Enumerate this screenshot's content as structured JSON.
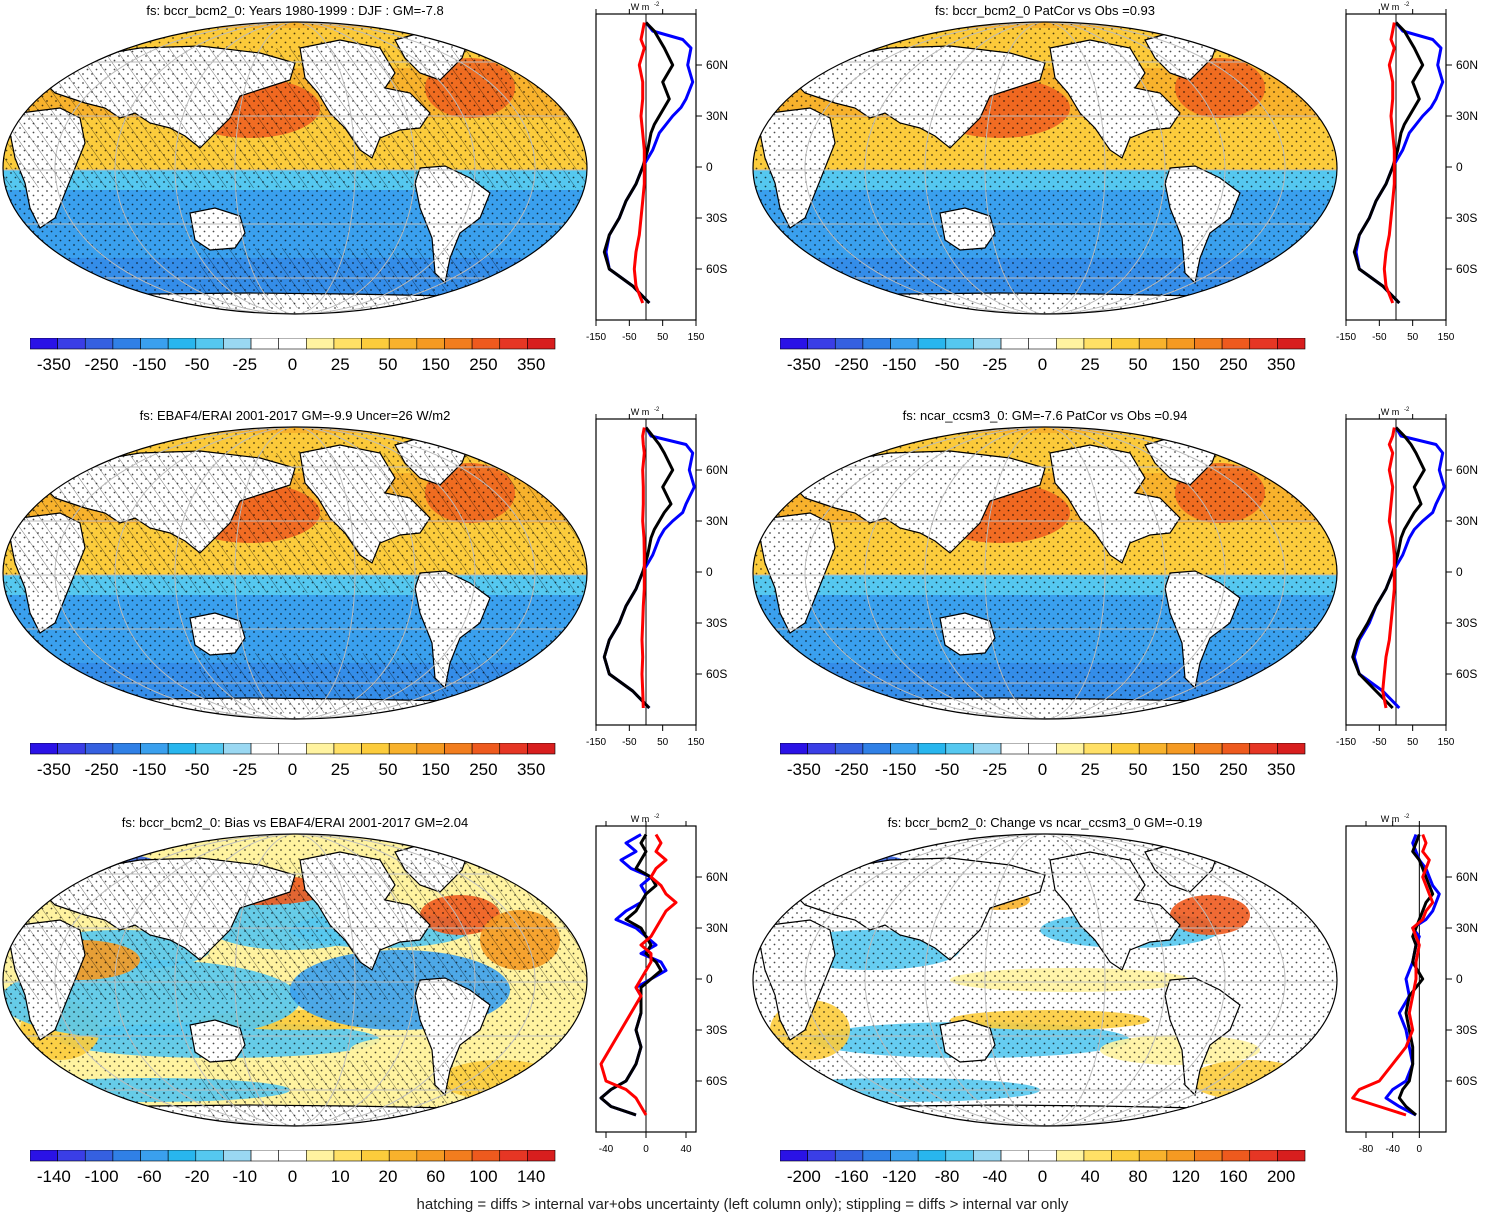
{
  "footer": "hatching = diffs > internal var+obs uncertainty (left column only); stippling = diffs > internal var only",
  "colorscales": {
    "abs": [
      "#2a12e6",
      "#3a3ee6",
      "#3560e0",
      "#3080e6",
      "#3aa0ee",
      "#28b6ee",
      "#55c8f0",
      "#9ad8f2",
      "#ffffff",
      "#ffffff",
      "#fff3a0",
      "#ffe066",
      "#fccc3c",
      "#f8b22c",
      "#f59a22",
      "#f27d1e",
      "#ee5a1e",
      "#e63624",
      "#d81e1e"
    ],
    "diff": [
      "#2a12e6",
      "#3a3ee6",
      "#3560e0",
      "#3080e6",
      "#3aa0ee",
      "#28b6ee",
      "#55c8f0",
      "#9ad8f2",
      "#ffffff",
      "#ffffff",
      "#fff3a0",
      "#ffe066",
      "#fccc3c",
      "#f8b22c",
      "#f59a22",
      "#f27d1e",
      "#ee5a1e",
      "#e63624",
      "#d81e1e"
    ]
  },
  "lat_labels": [
    "60N",
    "30N",
    "0",
    "30S",
    "60S"
  ],
  "profile_unit": "W m",
  "profile_unit_sup": "-2",
  "panels": [
    {
      "id": "p1",
      "title": "fs: bccr_bcm2_0: Years 1980-1999 : DJF : GM=-7.8",
      "cbar_ticks": [
        "-350",
        "-250",
        "-150",
        "-50",
        "-25",
        "0",
        "25",
        "50",
        "150",
        "250",
        "350"
      ],
      "scale": "abs",
      "hatch": true,
      "profile_ticks": [
        "-150",
        "-50",
        "50",
        "150"
      ],
      "profile_range": [
        -150,
        150
      ],
      "profile_series": [
        {
          "color": "#0000ff",
          "lat": [
            85,
            80,
            75,
            70,
            60,
            50,
            40,
            35,
            30,
            25,
            20,
            10,
            0,
            -10,
            -20,
            -30,
            -40,
            -50,
            -60,
            -70,
            -80
          ],
          "value": [
            0,
            20,
            110,
            135,
            125,
            140,
            120,
            105,
            80,
            60,
            40,
            20,
            -10,
            -30,
            -60,
            -80,
            -110,
            -120,
            -110,
            -40,
            10
          ]
        },
        {
          "color": "#000000",
          "lat": [
            85,
            80,
            75,
            70,
            60,
            50,
            40,
            35,
            30,
            25,
            20,
            10,
            0,
            -10,
            -20,
            -30,
            -40,
            -50,
            -60,
            -70,
            -80
          ],
          "value": [
            0,
            25,
            40,
            55,
            80,
            50,
            70,
            55,
            40,
            25,
            15,
            5,
            -10,
            -30,
            -60,
            -80,
            -110,
            -125,
            -110,
            -40,
            10
          ]
        },
        {
          "color": "#ff0000",
          "lat": [
            85,
            80,
            75,
            70,
            60,
            50,
            40,
            30,
            20,
            10,
            0,
            -10,
            -20,
            -30,
            -40,
            -50,
            -60,
            -70,
            -80
          ],
          "value": [
            -5,
            -10,
            -15,
            -5,
            -20,
            -10,
            -10,
            -15,
            -10,
            -5,
            -5,
            -5,
            -10,
            -15,
            -20,
            -30,
            -35,
            -30,
            -10
          ]
        }
      ]
    },
    {
      "id": "p2",
      "title": "fs: bccr_bcm2_0 PatCor vs Obs =0.93",
      "cbar_ticks": [
        "-350",
        "-250",
        "-150",
        "-50",
        "-25",
        "0",
        "25",
        "50",
        "150",
        "250",
        "350"
      ],
      "scale": "abs",
      "hatch": false,
      "profile_ticks": [
        "-150",
        "-50",
        "50",
        "150"
      ],
      "profile_range": [
        -150,
        150
      ],
      "profile_series": [
        {
          "color": "#0000ff",
          "lat": [
            85,
            80,
            75,
            70,
            60,
            50,
            40,
            35,
            30,
            25,
            20,
            10,
            0,
            -10,
            -20,
            -30,
            -40,
            -50,
            -60,
            -70,
            -80
          ],
          "value": [
            0,
            20,
            110,
            135,
            125,
            140,
            120,
            105,
            80,
            60,
            40,
            20,
            -10,
            -30,
            -60,
            -80,
            -110,
            -120,
            -110,
            -40,
            10
          ]
        },
        {
          "color": "#000000",
          "lat": [
            85,
            80,
            75,
            70,
            60,
            50,
            40,
            35,
            30,
            25,
            20,
            10,
            0,
            -10,
            -20,
            -30,
            -40,
            -50,
            -60,
            -70,
            -80
          ],
          "value": [
            0,
            25,
            40,
            55,
            80,
            50,
            70,
            55,
            40,
            25,
            15,
            5,
            -10,
            -30,
            -60,
            -80,
            -110,
            -125,
            -110,
            -40,
            10
          ]
        },
        {
          "color": "#ff0000",
          "lat": [
            85,
            80,
            75,
            70,
            60,
            50,
            40,
            30,
            20,
            10,
            0,
            -10,
            -20,
            -30,
            -40,
            -50,
            -60,
            -70,
            -80
          ],
          "value": [
            -5,
            -10,
            -15,
            -5,
            -20,
            -10,
            -10,
            -15,
            -10,
            -5,
            -5,
            -5,
            -10,
            -15,
            -20,
            -30,
            -35,
            -30,
            -10
          ]
        }
      ]
    },
    {
      "id": "p3",
      "title": "fs: EBAF4/ERAI 2001-2017 GM=-9.9 Uncer=26 W/m2",
      "cbar_ticks": [
        "-350",
        "-250",
        "-150",
        "-50",
        "-25",
        "0",
        "25",
        "50",
        "150",
        "250",
        "350"
      ],
      "scale": "abs",
      "hatch": true,
      "profile_ticks": [
        "-150",
        "-50",
        "50",
        "150"
      ],
      "profile_range": [
        -150,
        150
      ],
      "profile_series": [
        {
          "color": "#0000ff",
          "lat": [
            85,
            80,
            75,
            70,
            60,
            50,
            40,
            35,
            30,
            25,
            20,
            10,
            0,
            -10,
            -20,
            -30,
            -40,
            -50,
            -60,
            -70,
            -80
          ],
          "value": [
            0,
            15,
            120,
            140,
            130,
            145,
            120,
            110,
            80,
            55,
            40,
            20,
            -10,
            -30,
            -60,
            -80,
            -110,
            -125,
            -110,
            -40,
            10
          ]
        },
        {
          "color": "#000000",
          "lat": [
            85,
            80,
            75,
            70,
            60,
            50,
            40,
            35,
            30,
            25,
            20,
            10,
            0,
            -10,
            -20,
            -30,
            -40,
            -50,
            -60,
            -70,
            -80
          ],
          "value": [
            0,
            20,
            40,
            55,
            80,
            50,
            75,
            55,
            40,
            25,
            15,
            5,
            -10,
            -30,
            -60,
            -80,
            -110,
            -125,
            -110,
            -40,
            10
          ]
        },
        {
          "color": "#ff0000",
          "lat": [
            85,
            80,
            75,
            70,
            60,
            50,
            40,
            30,
            20,
            10,
            0,
            -10,
            -20,
            -30,
            -40,
            -50,
            -60,
            -70,
            -80
          ],
          "value": [
            -5,
            -10,
            -8,
            -5,
            -10,
            -8,
            -8,
            -10,
            -6,
            -5,
            -5,
            -5,
            -8,
            -10,
            -12,
            -10,
            -12,
            -10,
            -8
          ]
        }
      ]
    },
    {
      "id": "p4",
      "title": "fs: ncar_ccsm3_0: GM=-7.6 PatCor vs Obs =0.94",
      "cbar_ticks": [
        "-350",
        "-250",
        "-150",
        "-50",
        "-25",
        "0",
        "25",
        "50",
        "150",
        "250",
        "350"
      ],
      "scale": "abs",
      "hatch": false,
      "profile_ticks": [
        "-150",
        "-50",
        "50",
        "150"
      ],
      "profile_range": [
        -150,
        150
      ],
      "profile_series": [
        {
          "color": "#0000ff",
          "lat": [
            85,
            80,
            75,
            70,
            60,
            50,
            40,
            35,
            30,
            25,
            20,
            10,
            0,
            -10,
            -20,
            -30,
            -40,
            -50,
            -60,
            -70,
            -80
          ],
          "value": [
            0,
            15,
            120,
            140,
            130,
            145,
            120,
            110,
            80,
            55,
            40,
            20,
            -10,
            -30,
            -60,
            -80,
            -110,
            -125,
            -110,
            -40,
            10
          ]
        },
        {
          "color": "#000000",
          "lat": [
            85,
            80,
            75,
            70,
            60,
            50,
            40,
            35,
            30,
            25,
            20,
            10,
            0,
            -10,
            -20,
            -30,
            -40,
            -50,
            -60,
            -70,
            -80
          ],
          "value": [
            0,
            25,
            45,
            60,
            85,
            55,
            75,
            55,
            40,
            25,
            15,
            5,
            -10,
            -30,
            -60,
            -85,
            -115,
            -130,
            -110,
            -60,
            -10
          ]
        },
        {
          "color": "#ff0000",
          "lat": [
            85,
            80,
            75,
            70,
            60,
            50,
            40,
            30,
            20,
            10,
            0,
            -10,
            -20,
            -30,
            -40,
            -50,
            -60,
            -70,
            -80
          ],
          "value": [
            -5,
            -10,
            -20,
            -10,
            -20,
            -10,
            -15,
            -20,
            -10,
            -5,
            -5,
            -5,
            -10,
            -15,
            -20,
            -30,
            -35,
            -40,
            -30
          ]
        }
      ]
    },
    {
      "id": "p5",
      "title": "fs: bccr_bcm2_0: Bias vs EBAF4/ERAI 2001-2017 GM=2.04",
      "cbar_ticks": [
        "-140",
        "-100",
        "-60",
        "-20",
        "-10",
        "0",
        "10",
        "20",
        "60",
        "100",
        "140"
      ],
      "scale": "diff",
      "hatch": true,
      "profile_ticks": [
        "-40",
        "0",
        "40"
      ],
      "profile_range": [
        -50,
        50
      ],
      "profile_series": [
        {
          "color": "#0000ff",
          "lat": [
            85,
            80,
            75,
            70,
            65,
            60,
            55,
            50,
            45,
            40,
            35,
            30,
            25,
            20,
            15,
            10,
            5,
            0,
            -5,
            -10,
            -15,
            -20,
            -30,
            -40,
            -50,
            -60,
            -65,
            -70,
            -75,
            -80
          ],
          "value": [
            -5,
            -20,
            -10,
            -25,
            -15,
            5,
            -5,
            0,
            -5,
            -20,
            -30,
            -10,
            0,
            10,
            -5,
            15,
            20,
            5,
            -10,
            -5,
            -5,
            -5,
            -10,
            -5,
            -10,
            -20,
            -35,
            -45,
            -35,
            -10
          ]
        },
        {
          "color": "#000000",
          "lat": [
            85,
            80,
            75,
            70,
            65,
            60,
            55,
            50,
            45,
            40,
            35,
            30,
            25,
            20,
            15,
            10,
            5,
            0,
            -5,
            -10,
            -15,
            -20,
            -30,
            -40,
            -50,
            -60,
            -65,
            -70,
            -75,
            -80
          ],
          "value": [
            0,
            -5,
            0,
            -5,
            -10,
            5,
            10,
            0,
            -5,
            -10,
            -20,
            -5,
            0,
            5,
            0,
            10,
            15,
            5,
            -5,
            -5,
            -5,
            -5,
            -10,
            -5,
            -10,
            -20,
            -35,
            -45,
            -35,
            -10
          ]
        },
        {
          "color": "#ff0000",
          "lat": [
            85,
            80,
            75,
            70,
            65,
            60,
            55,
            50,
            45,
            40,
            35,
            30,
            25,
            20,
            15,
            10,
            5,
            0,
            -5,
            -10,
            -15,
            -20,
            -30,
            -40,
            -50,
            -60,
            -65,
            -70,
            -75,
            -80
          ],
          "value": [
            10,
            15,
            10,
            20,
            10,
            5,
            15,
            20,
            30,
            20,
            15,
            10,
            5,
            -5,
            5,
            5,
            0,
            -5,
            -10,
            -5,
            -10,
            -15,
            -25,
            -35,
            -45,
            -40,
            -20,
            -10,
            -5,
            0
          ]
        }
      ]
    },
    {
      "id": "p6",
      "title": "fs: bccr_bcm2_0: Change vs ncar_ccsm3_0 GM=-0.19",
      "cbar_ticks": [
        "-200",
        "-160",
        "-120",
        "-80",
        "-40",
        "0",
        "40",
        "80",
        "120",
        "160",
        "200"
      ],
      "scale": "diff",
      "hatch": false,
      "profile_ticks": [
        "-80",
        "-40",
        "0"
      ],
      "profile_range": [
        -110,
        40
      ],
      "profile_series": [
        {
          "color": "#0000ff",
          "lat": [
            85,
            80,
            75,
            70,
            65,
            60,
            55,
            50,
            45,
            40,
            35,
            30,
            25,
            20,
            10,
            0,
            -10,
            -20,
            -30,
            -40,
            -50,
            -60,
            -65,
            -70,
            -75,
            -80
          ],
          "value": [
            -5,
            -10,
            -5,
            0,
            10,
            15,
            20,
            30,
            25,
            20,
            10,
            -10,
            0,
            -5,
            -10,
            -20,
            -15,
            -30,
            -20,
            -15,
            -10,
            -20,
            -40,
            -50,
            -30,
            -5
          ]
        },
        {
          "color": "#000000",
          "lat": [
            85,
            80,
            75,
            70,
            65,
            60,
            55,
            50,
            45,
            40,
            35,
            30,
            25,
            20,
            10,
            0,
            -10,
            -20,
            -30,
            -40,
            -50,
            -60,
            -65,
            -70,
            -75,
            -80
          ],
          "value": [
            0,
            -5,
            -10,
            0,
            5,
            10,
            15,
            20,
            10,
            5,
            0,
            -5,
            -10,
            -5,
            -10,
            5,
            -15,
            -20,
            -15,
            -10,
            -10,
            -15,
            -25,
            -30,
            -20,
            -5
          ]
        },
        {
          "color": "#ff0000",
          "lat": [
            85,
            80,
            75,
            70,
            65,
            60,
            55,
            50,
            45,
            40,
            35,
            30,
            25,
            20,
            10,
            0,
            -10,
            -20,
            -30,
            -40,
            -50,
            -60,
            -65,
            -70,
            -75,
            -80
          ],
          "value": [
            5,
            10,
            5,
            15,
            10,
            5,
            10,
            15,
            20,
            10,
            5,
            -10,
            -5,
            0,
            -5,
            -5,
            -10,
            -15,
            -10,
            -20,
            -40,
            -60,
            -90,
            -100,
            -60,
            -20
          ]
        }
      ]
    }
  ]
}
